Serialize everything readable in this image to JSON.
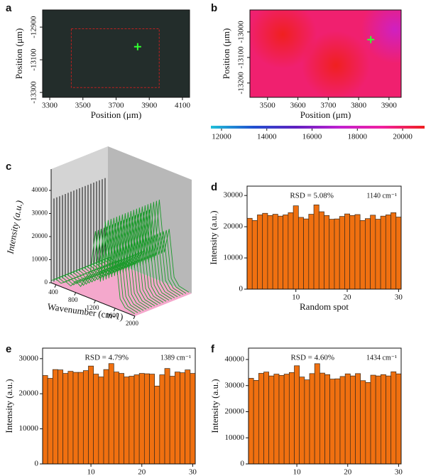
{
  "chart_data": [
    {
      "type": "image",
      "label": "a",
      "xlabel": "Position (μm)",
      "ylabel": "Position (μm)",
      "xlim": [
        3257,
        4143
      ],
      "ylim": [
        -13330,
        -12795
      ],
      "xticks": [
        3300,
        3500,
        3700,
        3900,
        4100
      ],
      "yticks": [
        -12900,
        -13100,
        -13300
      ],
      "roi": {
        "x": [
          3430,
          3960
        ],
        "y": [
          -13270,
          -12910
        ]
      },
      "marker": {
        "x": 3830,
        "y": -13020,
        "color": "#30ff30"
      }
    },
    {
      "type": "heatmap",
      "label": "b",
      "xlabel": "Position (μm)",
      "ylabel": "Position (μm)",
      "xlim": [
        3442,
        3940
      ],
      "ylim": [
        -13256,
        -12914
      ],
      "xticks": [
        3500,
        3600,
        3700,
        3800,
        3900
      ],
      "yticks": [
        -13000,
        -13100,
        -13200
      ],
      "background": 19800,
      "spots": [
        {
          "x": 3550,
          "y": -13010,
          "value": 21000
        },
        {
          "x": 3725,
          "y": -13130,
          "value": 21000
        },
        {
          "x": 3920,
          "y": -12990,
          "value": 17800
        }
      ],
      "marker": {
        "x": 3840,
        "y": -13030,
        "color": "#30ff30"
      },
      "colormap": [
        "#20c0d8",
        "#2050d0",
        "#6020c0",
        "#c020d0",
        "#f020a0",
        "#f02020"
      ],
      "colorbar": {
        "lim": [
          11530,
          20970
        ],
        "ticks": [
          12000,
          14000,
          16000,
          18000,
          20000
        ]
      }
    },
    {
      "type": "waterfall",
      "label": "c",
      "xlabel": "Wavenumber (cm-1)",
      "ylabel": "Intensity (a.u.)",
      "xticks": [
        400,
        800,
        1200,
        1600,
        2000
      ],
      "yticks": [
        0,
        10000,
        20000,
        30000,
        40000
      ],
      "color": "#1a9a2a",
      "x": [
        300,
        400,
        500,
        600,
        700,
        800,
        900,
        1000,
        1100,
        1200,
        1300,
        1400,
        1500,
        1600,
        1700,
        1800,
        1900,
        2000
      ],
      "values": [
        1000,
        2500,
        1500,
        3000,
        2000,
        5000,
        3500,
        8000,
        12000,
        30000,
        9000,
        36000,
        14000,
        25000,
        5000,
        2000,
        1500,
        1000
      ]
    },
    {
      "type": "bar",
      "label": "d",
      "xlabel": "Random spot",
      "ylabel": "Intensity (a.u.)",
      "annotations": [
        "RSD = 5.08%",
        "1140 cm⁻¹"
      ],
      "color": "#f07010",
      "xlim": [
        0.5,
        30.5
      ],
      "ylim": [
        0,
        33000
      ],
      "xticks": [
        10,
        20,
        30
      ],
      "yticks": [
        0,
        10000,
        20000,
        30000
      ],
      "x": [
        1,
        2,
        3,
        4,
        5,
        6,
        7,
        8,
        9,
        10,
        11,
        12,
        13,
        14,
        15,
        16,
        17,
        18,
        19,
        20,
        21,
        22,
        23,
        24,
        25,
        26,
        27,
        28,
        29,
        30
      ],
      "values": [
        22700,
        22000,
        23800,
        24300,
        23600,
        24000,
        23400,
        23800,
        24500,
        26700,
        23000,
        22500,
        24000,
        27000,
        24800,
        23600,
        22400,
        22500,
        23300,
        24100,
        23600,
        23900,
        22000,
        22600,
        23700,
        22400,
        23400,
        23800,
        24500,
        23100
      ]
    },
    {
      "type": "bar",
      "label": "e",
      "xlabel": "Random spot",
      "ylabel": "Intensity (a.u.)",
      "annotations": [
        "RSD = 4.79%",
        "1389 cm⁻¹"
      ],
      "color": "#f07010",
      "xlim": [
        0.5,
        30.5
      ],
      "ylim": [
        0,
        33000
      ],
      "xticks": [
        10,
        20,
        30
      ],
      "yticks": [
        0,
        10000,
        20000,
        30000
      ],
      "x": [
        1,
        2,
        3,
        4,
        5,
        6,
        7,
        8,
        9,
        10,
        11,
        12,
        13,
        14,
        15,
        16,
        17,
        18,
        19,
        20,
        21,
        22,
        23,
        24,
        25,
        26,
        27,
        28,
        29,
        30
      ],
      "values": [
        25200,
        24400,
        26900,
        26800,
        25800,
        26400,
        26100,
        26100,
        26600,
        27900,
        25600,
        24800,
        26900,
        28600,
        26200,
        25800,
        24800,
        25000,
        25400,
        25800,
        25700,
        25600,
        22200,
        25400,
        27200,
        25000,
        26200,
        26000,
        26800,
        25800
      ]
    },
    {
      "type": "bar",
      "label": "f",
      "xlabel": "Random spot",
      "ylabel": "Intensity (a.u.)",
      "annotations": [
        "RSD = 4.60%",
        "1434 cm⁻¹"
      ],
      "color": "#f07010",
      "xlim": [
        0.5,
        30.5
      ],
      "ylim": [
        0,
        44350
      ],
      "xticks": [
        10,
        20,
        30
      ],
      "yticks": [
        0,
        10000,
        20000,
        30000,
        40000
      ],
      "x": [
        1,
        2,
        3,
        4,
        5,
        6,
        7,
        8,
        9,
        10,
        11,
        12,
        13,
        14,
        15,
        16,
        17,
        18,
        19,
        20,
        21,
        22,
        23,
        24,
        25,
        26,
        27,
        28,
        29,
        30
      ],
      "values": [
        32800,
        32000,
        34700,
        35200,
        33700,
        34400,
        33900,
        34400,
        35000,
        37600,
        33300,
        32200,
        34600,
        38400,
        34800,
        34200,
        32500,
        32600,
        33500,
        34500,
        33700,
        34600,
        31900,
        31200,
        34000,
        33700,
        34200,
        33700,
        35300,
        34500
      ]
    }
  ]
}
